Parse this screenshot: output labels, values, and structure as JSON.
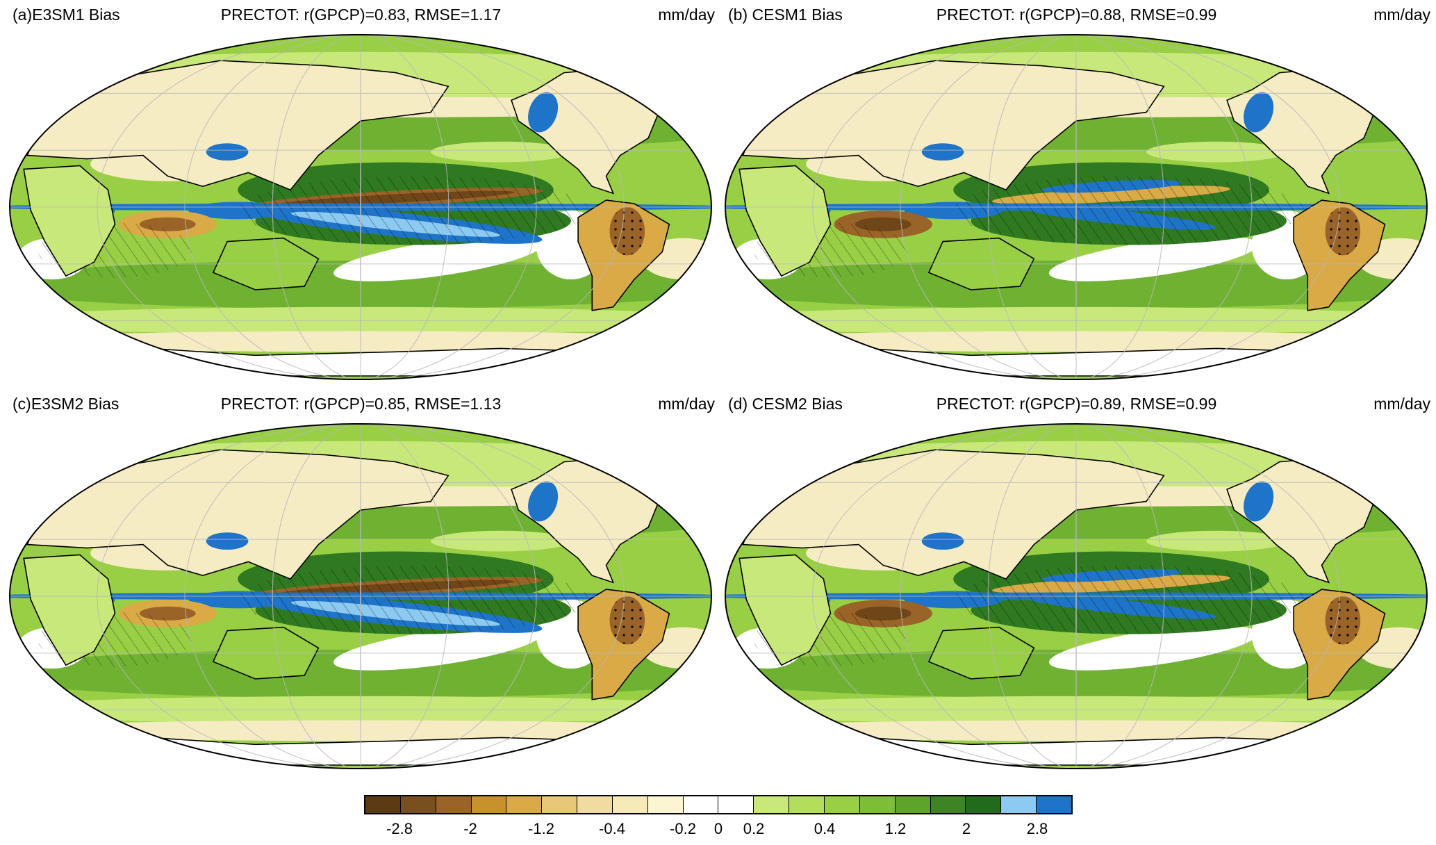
{
  "panels": [
    {
      "label": "(a)E3SM1 Bias",
      "stats": "PRECTOT: r(GPCP)=0.83, RMSE=1.17",
      "units": "mm/day"
    },
    {
      "label": "(b) CESM1 Bias",
      "stats": "PRECTOT: r(GPCP)=0.88, RMSE=0.99",
      "units": "mm/day"
    },
    {
      "label": "(c)E3SM2 Bias",
      "stats": "PRECTOT: r(GPCP)=0.85, RMSE=1.13",
      "units": "mm/day"
    },
    {
      "label": "(d) CESM2 Bias",
      "stats": "PRECTOT: r(GPCP)=0.89, RMSE=0.99",
      "units": "mm/day"
    }
  ],
  "colorbar": {
    "colors": [
      "#5c3a14",
      "#7a4f1f",
      "#9a6328",
      "#c8922a",
      "#d9aa45",
      "#e6c878",
      "#f0dca0",
      "#f6eab8",
      "#fbf5d2",
      "#ffffff",
      "#ffffff",
      "#c8e87a",
      "#b2de5c",
      "#98cf44",
      "#7ebd36",
      "#5ea32a",
      "#3f8424",
      "#236b1c",
      "#8ccaf2",
      "#1e74c8"
    ],
    "tick_labels": [
      "-2.8",
      "-2",
      "-1.2",
      "-0.4",
      "-0.2",
      "0",
      "0.2",
      "0.4",
      "1.2",
      "2",
      "2.8"
    ]
  }
}
